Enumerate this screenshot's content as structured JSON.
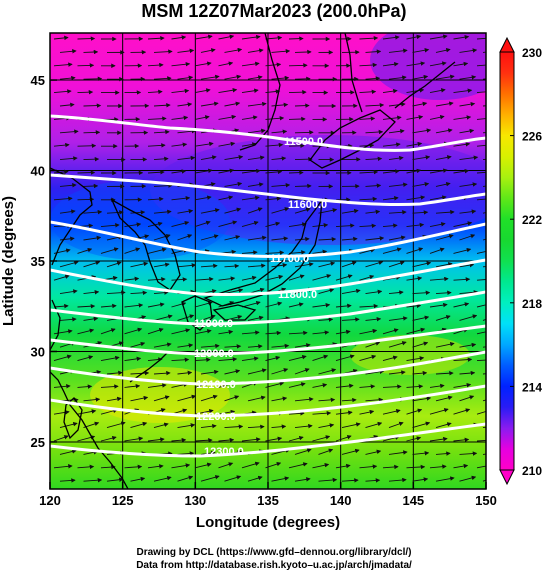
{
  "title": "MSM 12Z07Mar2023 (200.0hPa)",
  "map": {
    "lon_range": [
      120,
      150
    ],
    "lat_range": [
      22.4,
      47.6
    ],
    "xlabel": "Longitude (degrees)",
    "ylabel": "Latitude  (degrees)",
    "x_ticks": [
      120,
      125,
      130,
      135,
      140,
      145,
      150
    ],
    "y_ticks": [
      25,
      30,
      35,
      40,
      45
    ],
    "field": "temperature shading",
    "overlays": [
      "wind vectors",
      "geopotential height contours",
      "coastlines",
      "lon/lat grid"
    ]
  },
  "colorbar": {
    "min": 210,
    "max": 230,
    "tick_labels": [
      210,
      214,
      218,
      222,
      226,
      230
    ],
    "stops": [
      {
        "value": 210,
        "color": "#ff00c8"
      },
      {
        "value": 211,
        "color": "#e600e0"
      },
      {
        "value": 212,
        "color": "#8a1cf0"
      },
      {
        "value": 213,
        "color": "#2a1cf5"
      },
      {
        "value": 214,
        "color": "#0022ff"
      },
      {
        "value": 215,
        "color": "#005cff"
      },
      {
        "value": 216,
        "color": "#00a8ff"
      },
      {
        "value": 217,
        "color": "#00e0f8"
      },
      {
        "value": 218,
        "color": "#00f0c0"
      },
      {
        "value": 219,
        "color": "#00e890"
      },
      {
        "value": 220,
        "color": "#10e050"
      },
      {
        "value": 221,
        "color": "#18d830"
      },
      {
        "value": 222,
        "color": "#20e028"
      },
      {
        "value": 223,
        "color": "#60e818"
      },
      {
        "value": 224,
        "color": "#a8f010"
      },
      {
        "value": 225,
        "color": "#d8f000"
      },
      {
        "value": 226,
        "color": "#f8e800"
      },
      {
        "value": 227,
        "color": "#ffb000"
      },
      {
        "value": 228,
        "color": "#ff7000"
      },
      {
        "value": 229,
        "color": "#ff3010"
      },
      {
        "value": 230,
        "color": "#ff1010"
      }
    ]
  },
  "contours": [
    {
      "label": "11500.0",
      "lat_anchor": 44.6
    },
    {
      "label": "11600.0",
      "lat_anchor": 40.8
    },
    {
      "label": "11700.0",
      "lat_anchor": 37.4
    },
    {
      "label": "11800.0",
      "lat_anchor": 35.0
    },
    {
      "label": "11900.0",
      "lat_anchor": 32.2
    },
    {
      "label": "12000.0",
      "lat_anchor": 30.1
    },
    {
      "label": "12100.0",
      "lat_anchor": 28.0
    },
    {
      "label": "12200.0",
      "lat_anchor": 26.0
    },
    {
      "label": "12300.0",
      "lat_anchor": 24.3
    }
  ],
  "credits": {
    "line1": "Drawing by DCL (https://www.gfd–dennou.org/library/dcl/)",
    "line2": "Data from http://database.rish.kyoto–u.ac.jp/arch/jmadata/"
  }
}
